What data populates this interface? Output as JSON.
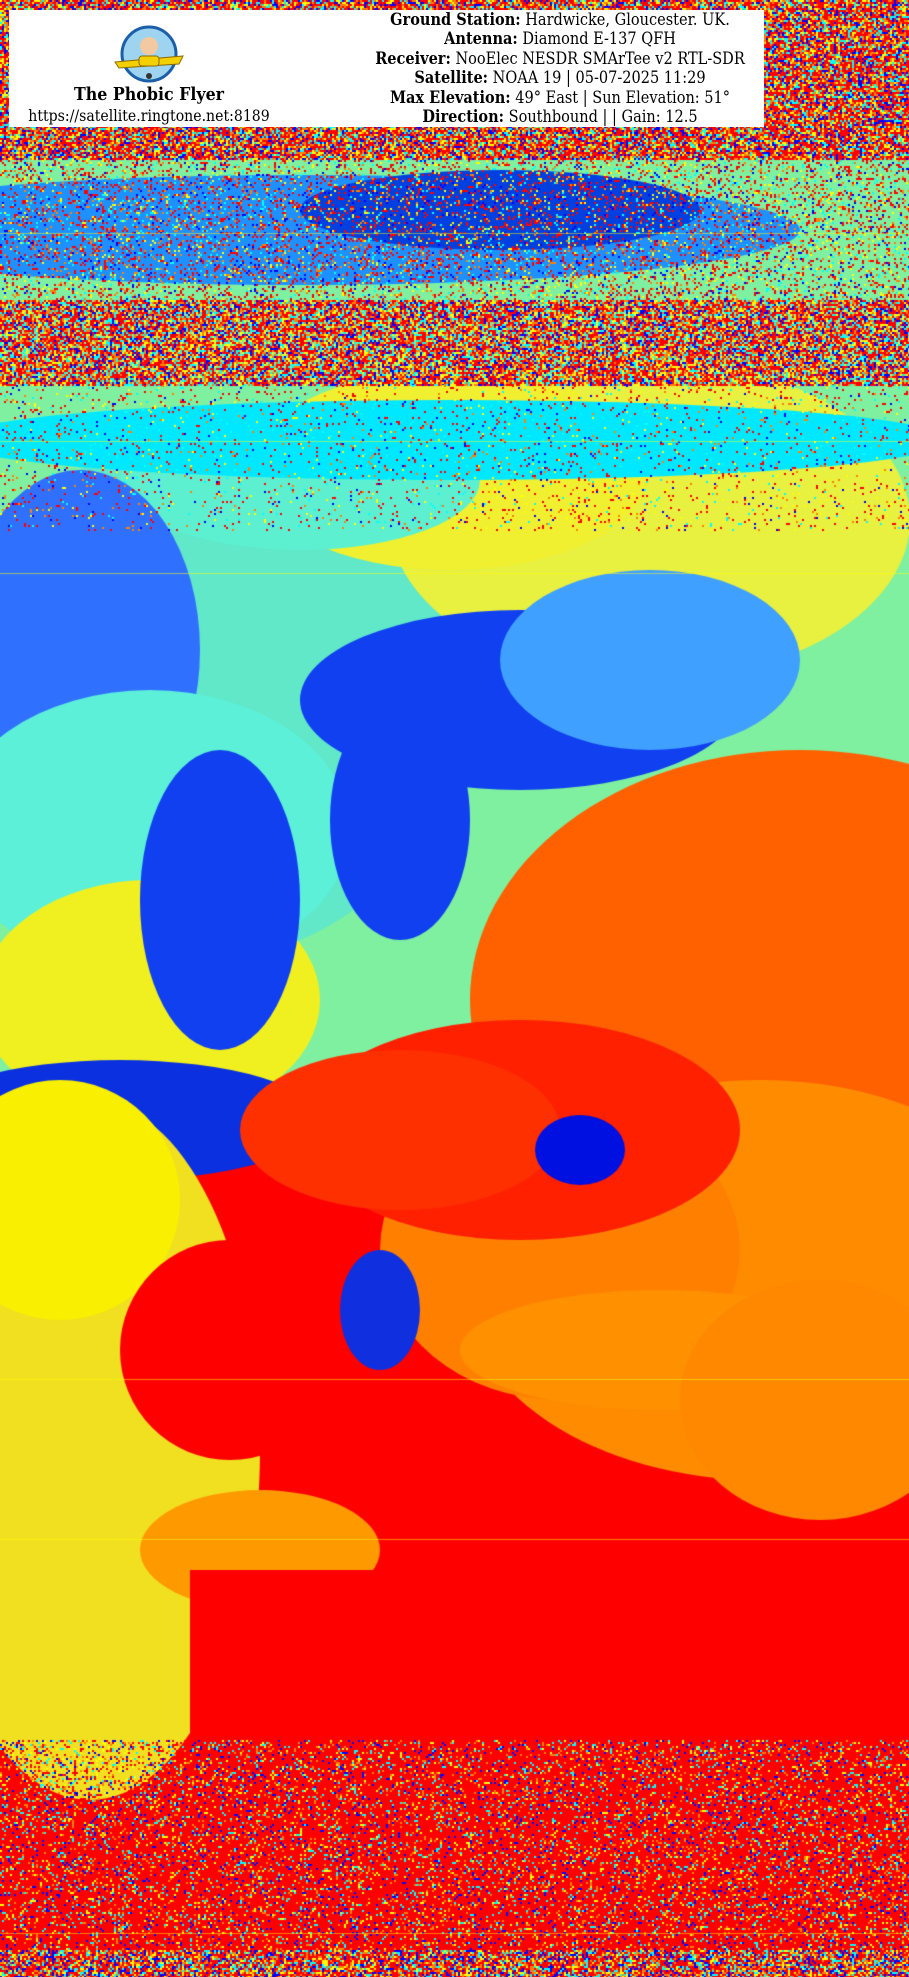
{
  "image": {
    "type": "NOAA APT false-color thermal satellite image",
    "palette": [
      "#0000ff",
      "#00ffff",
      "#ffff00",
      "#ff8000",
      "#ff0000"
    ]
  },
  "header": {
    "brand": "The Phobic Flyer",
    "url": "https://satellite.ringtone.net:8189",
    "logo_text": "The Phobic Flyer",
    "lines": [
      {
        "label": "Ground Station:",
        "value": "Hardwicke, Gloucester. UK."
      },
      {
        "label": "Antenna:",
        "value": "Diamond E-137 QFH"
      },
      {
        "label": "Receiver:",
        "value": "NooElec NESDR SMArTee v2 RTL-SDR"
      },
      {
        "label": "Satellite:",
        "value": "NOAA 19 | 05-07-2025 11:29"
      },
      {
        "label": "Max Elevation:",
        "value": "49° East | Sun Elevation: 51°"
      },
      {
        "label": "Direction:",
        "value": "Southbound | | Gain: 12.5"
      }
    ]
  }
}
